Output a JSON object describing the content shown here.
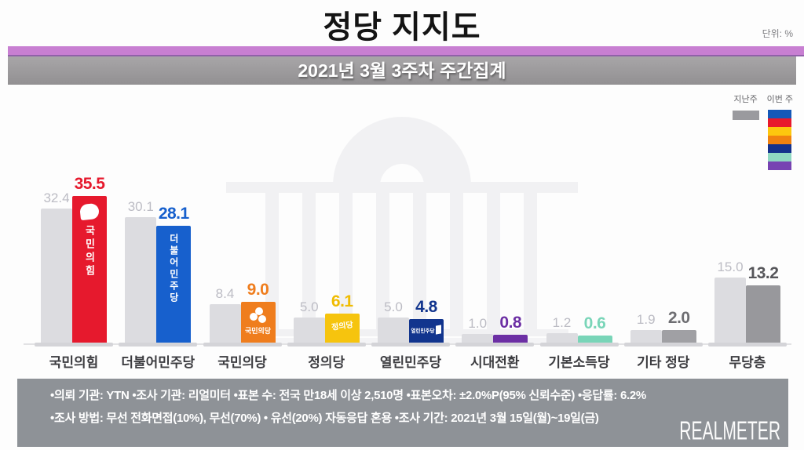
{
  "header": {
    "title": "정당 지지도",
    "unit_label": "단위: %",
    "subtitle": "2021년 3월 3주차 주간집계"
  },
  "legend": {
    "last_week_label": "지난주",
    "this_week_label": "이번 주",
    "last_week_color": "#9a9a9e",
    "this_week_colors": [
      "#1558b8",
      "#e8192c",
      "#fdc70e",
      "#f0820f",
      "#14318c",
      "#8fd8c2",
      "#7743b2"
    ]
  },
  "chart_data": {
    "type": "bar",
    "unit": "%",
    "title": "정당 지지도",
    "subtitle": "2021년 3월 3주차 주간집계",
    "categories": [
      "국민의힘",
      "더불어민주당",
      "국민의당",
      "정의당",
      "열린민주당",
      "시대전환",
      "기본소득당",
      "기타 정당",
      "무당층"
    ],
    "series": [
      {
        "name": "지난주",
        "values": [
          32.4,
          30.1,
          8.4,
          5.0,
          5.0,
          1.0,
          1.2,
          1.9,
          15.0
        ]
      },
      {
        "name": "이번 주",
        "values": [
          35.5,
          28.1,
          9.0,
          6.1,
          4.8,
          0.8,
          0.6,
          2.0,
          13.2
        ]
      }
    ],
    "prev_bar_color": "#dcdce0",
    "prev_value_color": "#bcbcc4",
    "bar_colors": [
      "#e6192d",
      "#1760cd",
      "#ef7d1d",
      "#f6c40e",
      "#12358e",
      "#6c2fa4",
      "#79d5b8",
      "#a0a0a4",
      "#98989c"
    ],
    "value_colors": [
      "#e6192d",
      "#1760cd",
      "#ef7d1d",
      "#f0bc02",
      "#12358e",
      "#6c2fa4",
      "#79d5b8",
      "#6e6e72",
      "#56565a"
    ],
    "bar_inner_labels": [
      "국민의힘",
      "더불어민주당",
      "국민의당",
      "정의당",
      "열린민주당",
      "",
      "",
      "",
      ""
    ],
    "bar_icons": [
      "speech-bubble",
      "wordmark",
      "pinwheel",
      "wordmark-tilt",
      "door",
      "",
      "",
      "",
      ""
    ],
    "ylim": [
      0,
      40
    ],
    "grid": false,
    "legend_position": "top-right"
  },
  "footer": {
    "line1": "•의뢰 기관: YTN •조사 기관: 리얼미터 •표본 수: 전국 만18세 이상 2,510명 •표본오차: ±2.0%P(95% 신뢰수준) •응답률: 6.2%",
    "line2": "•조사 방법: 무선 전화면접(10%), 무선(70%) • 유선(20%) 자동응답 혼용 •조사 기간: 2021년 3월 15일(월)~19일(금)",
    "logo": "REALMETER"
  }
}
